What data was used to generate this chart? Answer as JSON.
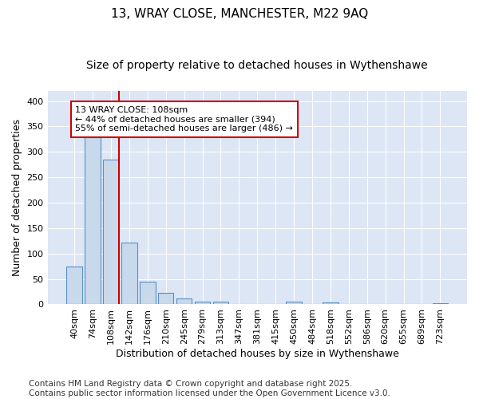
{
  "title_line1": "13, WRAY CLOSE, MANCHESTER, M22 9AQ",
  "title_line2": "Size of property relative to detached houses in Wythenshawe",
  "xlabel": "Distribution of detached houses by size in Wythenshawe",
  "ylabel": "Number of detached properties",
  "categories": [
    "40sqm",
    "74sqm",
    "108sqm",
    "142sqm",
    "176sqm",
    "210sqm",
    "245sqm",
    "279sqm",
    "313sqm",
    "347sqm",
    "381sqm",
    "415sqm",
    "450sqm",
    "484sqm",
    "518sqm",
    "552sqm",
    "586sqm",
    "620sqm",
    "655sqm",
    "689sqm",
    "723sqm"
  ],
  "values": [
    74,
    328,
    284,
    121,
    44,
    22,
    12,
    5,
    5,
    0,
    0,
    0,
    5,
    0,
    4,
    0,
    0,
    0,
    0,
    0,
    3
  ],
  "bar_color": "#c9d9ec",
  "bar_edge_color": "#5b8fc4",
  "highlight_bar_index": 2,
  "highlight_line_color": "#cc0000",
  "annotation_text": "13 WRAY CLOSE: 108sqm\n← 44% of detached houses are smaller (394)\n55% of semi-detached houses are larger (486) →",
  "annotation_box_color": "#ffffff",
  "annotation_box_edge_color": "#cc0000",
  "ylim": [
    0,
    420
  ],
  "yticks": [
    0,
    50,
    100,
    150,
    200,
    250,
    300,
    350,
    400
  ],
  "background_color": "#dce6f5",
  "footer_text": "Contains HM Land Registry data © Crown copyright and database right 2025.\nContains public sector information licensed under the Open Government Licence v3.0.",
  "title_fontsize": 11,
  "subtitle_fontsize": 10,
  "axis_label_fontsize": 9,
  "tick_fontsize": 8,
  "annotation_fontsize": 8,
  "footer_fontsize": 7.5
}
